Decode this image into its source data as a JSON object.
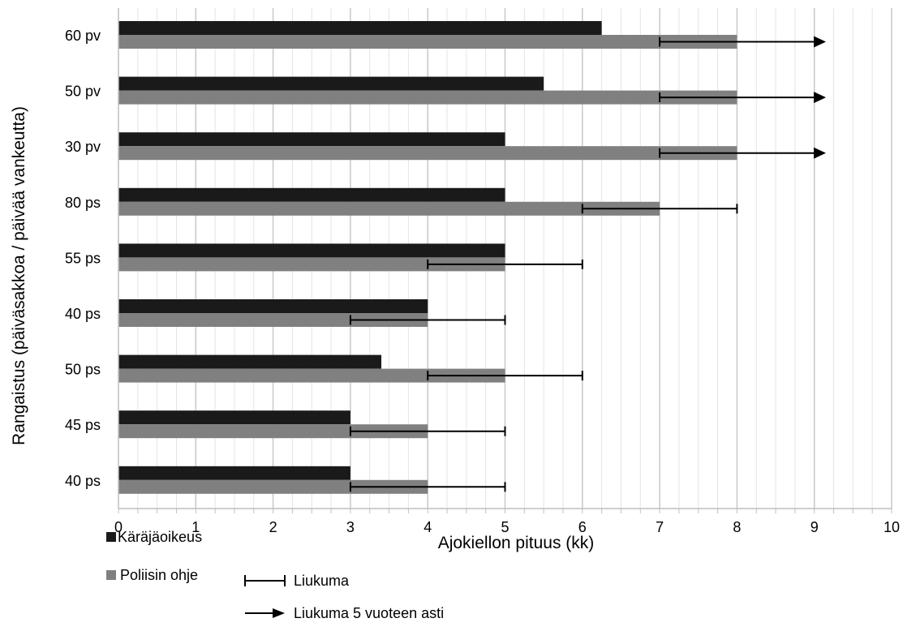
{
  "chart_data": {
    "type": "bar",
    "orientation": "horizontal",
    "xlabel": "Ajokiellon pituus (kk)",
    "ylabel": "Rangaistus (päiväsakkoa / päivää vankeutta)",
    "xlim": [
      0,
      10
    ],
    "x_ticks": [
      "0",
      "1",
      "2",
      "3",
      "4",
      "5",
      "6",
      "7",
      "8",
      "9",
      "10"
    ],
    "grid": true,
    "categories": [
      "60 pv",
      "50 pv",
      "30 pv",
      "80 ps",
      "55 ps",
      "40 ps",
      "50 ps",
      "45 ps",
      "40 ps"
    ],
    "series": [
      {
        "name": "Käräjäoikeus",
        "color": "#1a1a1a",
        "values": [
          6.25,
          5.5,
          5,
          5,
          5,
          4,
          3.4,
          3,
          3
        ]
      },
      {
        "name": "Poliisin ohje",
        "color": "#808080",
        "values": [
          8,
          8,
          8,
          7,
          5,
          4,
          5,
          4,
          4
        ]
      }
    ],
    "ranges": [
      {
        "low": 7,
        "high": 9.15,
        "open_ended": true
      },
      {
        "low": 7,
        "high": 9.15,
        "open_ended": true
      },
      {
        "low": 7,
        "high": 9.15,
        "open_ended": true
      },
      {
        "low": 6,
        "high": 8,
        "open_ended": false
      },
      {
        "low": 4,
        "high": 6,
        "open_ended": false
      },
      {
        "low": 3,
        "high": 5,
        "open_ended": false
      },
      {
        "low": 4,
        "high": 6,
        "open_ended": false
      },
      {
        "low": 3,
        "high": 5,
        "open_ended": false
      },
      {
        "low": 3,
        "high": 5,
        "open_ended": false
      }
    ],
    "legend_position": "bottom-left",
    "legend": {
      "series1": "Käräjäoikeus",
      "series2": "Poliisin ohje",
      "range": "Liukuma",
      "range_open": "Liukuma 5 vuoteen asti"
    }
  }
}
